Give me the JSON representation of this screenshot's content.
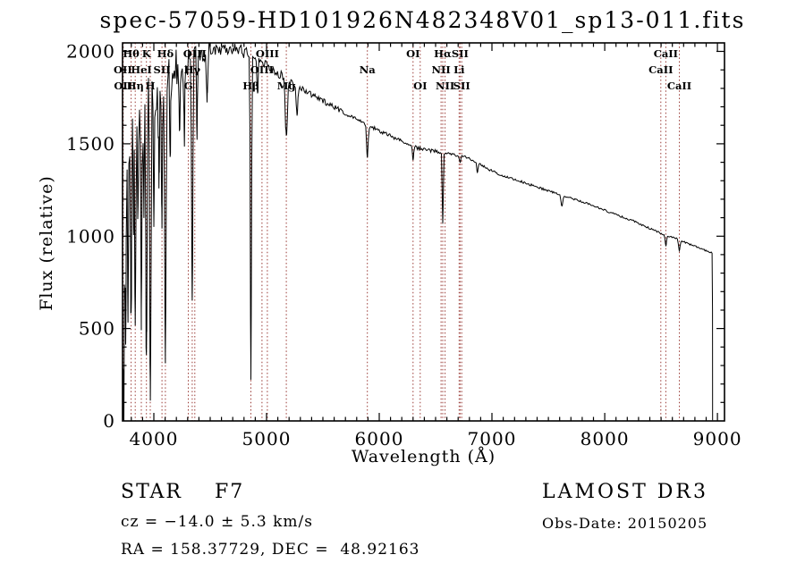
{
  "title": "spec-57059-HD101926N482348V01_sp13-011.fits",
  "annotations": {
    "class_line": "STAR    F7",
    "cz_line": "cz = −14.0 ± 5.3 km/s",
    "radec_line": "RA = 158.37729, DEC =  48.92163",
    "survey_line": "LAMOST DR3",
    "obsdate_line": "Obs-Date: 20150205"
  },
  "chart_data": {
    "type": "line",
    "title": "spec-57059-HD101926N482348V01_sp13-011.fits",
    "xlabel": "Wavelength (Å)",
    "ylabel": "Flux (relative)",
    "xlim": [
      3722,
      9063
    ],
    "ylim": [
      0,
      2046
    ],
    "x_ticks": [
      4000,
      5000,
      6000,
      7000,
      8000,
      9000
    ],
    "y_ticks": [
      0,
      500,
      1000,
      1500,
      2000
    ],
    "x_minor_step": 100,
    "y_minor_step": 100,
    "grid": false,
    "trace_color": "#000000",
    "marker_line_color": "#9a3b36",
    "spectrum_start": 3723,
    "spectrum_end": 8955,
    "spectral_lines": [
      {
        "name": "OII",
        "wavelength": 3725,
        "row": 2
      },
      {
        "name": "OII",
        "wavelength": 3728,
        "row": 3
      },
      {
        "name": "Hθ",
        "wavelength": 3798,
        "row": 1
      },
      {
        "name": "Hη",
        "wavelength": 3835,
        "row": 3
      },
      {
        "name": "HeI",
        "wavelength": 3889,
        "row": 2
      },
      {
        "name": "K",
        "wavelength": 3934,
        "row": 1
      },
      {
        "name": "H",
        "wavelength": 3968,
        "row": 3
      },
      {
        "name": "SII",
        "wavelength": 4072,
        "row": 2
      },
      {
        "name": "Hδ",
        "wavelength": 4102,
        "row": 1
      },
      {
        "name": "G",
        "wavelength": 4305,
        "row": 3
      },
      {
        "name": "Hγ",
        "wavelength": 4340,
        "row": 2
      },
      {
        "name": "OIII",
        "wavelength": 4363,
        "row": 1
      },
      {
        "name": "Hβ",
        "wavelength": 4861,
        "row": 3
      },
      {
        "name": "OIII",
        "wavelength": 4959,
        "row": 2
      },
      {
        "name": "OIII",
        "wavelength": 5007,
        "row": 1
      },
      {
        "name": "Mg",
        "wavelength": 5175,
        "row": 3
      },
      {
        "name": "Na",
        "wavelength": 5894,
        "row": 2
      },
      {
        "name": "OI",
        "wavelength": 6300,
        "row": 1
      },
      {
        "name": "OI",
        "wavelength": 6363,
        "row": 3
      },
      {
        "name": "NII",
        "wavelength": 6548,
        "row": 2
      },
      {
        "name": "Hα",
        "wavelength": 6563,
        "row": 1
      },
      {
        "name": "NII",
        "wavelength": 6584,
        "row": 3
      },
      {
        "name": "Li",
        "wavelength": 6708,
        "row": 2
      },
      {
        "name": "SII",
        "wavelength": 6717,
        "row": 1
      },
      {
        "name": "SII",
        "wavelength": 6731,
        "row": 3
      },
      {
        "name": "CaII",
        "wavelength": 8498,
        "row": 2
      },
      {
        "name": "CaII",
        "wavelength": 8542,
        "row": 1
      },
      {
        "name": "CaII",
        "wavelength": 8662,
        "row": 3
      }
    ],
    "continuum_points": [
      [
        3723,
        200
      ],
      [
        3740,
        1100
      ],
      [
        3770,
        1450
      ],
      [
        3800,
        1600
      ],
      [
        3850,
        1700
      ],
      [
        3900,
        1760
      ],
      [
        3950,
        1810
      ],
      [
        4000,
        1855
      ],
      [
        4060,
        1900
      ],
      [
        4120,
        1940
      ],
      [
        4200,
        1975
      ],
      [
        4300,
        1995
      ],
      [
        4400,
        2010
      ],
      [
        4500,
        2025
      ],
      [
        4650,
        2038
      ],
      [
        4750,
        2028
      ],
      [
        4850,
        2000
      ],
      [
        4950,
        1960
      ],
      [
        5050,
        1915
      ],
      [
        5150,
        1870
      ],
      [
        5250,
        1825
      ],
      [
        5350,
        1790
      ],
      [
        5450,
        1755
      ],
      [
        5550,
        1720
      ],
      [
        5650,
        1688
      ],
      [
        5750,
        1655
      ],
      [
        5850,
        1622
      ],
      [
        5950,
        1590
      ],
      [
        6050,
        1560
      ],
      [
        6150,
        1532
      ],
      [
        6250,
        1505
      ],
      [
        6350,
        1480
      ],
      [
        6450,
        1468
      ],
      [
        6550,
        1455
      ],
      [
        6650,
        1445
      ],
      [
        6750,
        1432
      ],
      [
        6850,
        1410
      ],
      [
        6950,
        1370
      ],
      [
        7050,
        1340
      ],
      [
        7150,
        1322
      ],
      [
        7250,
        1300
      ],
      [
        7350,
        1280
      ],
      [
        7450,
        1258
      ],
      [
        7550,
        1238
      ],
      [
        7650,
        1218
      ],
      [
        7750,
        1198
      ],
      [
        7850,
        1178
      ],
      [
        7950,
        1155
      ],
      [
        8050,
        1130
      ],
      [
        8150,
        1108
      ],
      [
        8250,
        1085
      ],
      [
        8350,
        1058
      ],
      [
        8450,
        1030
      ],
      [
        8550,
        1005
      ],
      [
        8650,
        985
      ],
      [
        8750,
        958
      ],
      [
        8850,
        935
      ],
      [
        8955,
        912
      ]
    ],
    "absorption_features": [
      [
        3734,
        650,
        5
      ],
      [
        3750,
        720,
        5
      ],
      [
        3771,
        860,
        5
      ],
      [
        3798,
        1020,
        6
      ],
      [
        3820,
        560,
        5
      ],
      [
        3835,
        1060,
        6
      ],
      [
        3860,
        620,
        5
      ],
      [
        3889,
        1120,
        7
      ],
      [
        3912,
        560,
        5
      ],
      [
        3934,
        1430,
        8
      ],
      [
        3969,
        1570,
        8
      ],
      [
        4000,
        620,
        6
      ],
      [
        4045,
        570,
        6
      ],
      [
        4072,
        720,
        6
      ],
      [
        4102,
        1630,
        8
      ],
      [
        4144,
        430,
        7
      ],
      [
        4227,
        390,
        6
      ],
      [
        4271,
        360,
        6
      ],
      [
        4340,
        1330,
        8
      ],
      [
        4383,
        390,
        7
      ],
      [
        4472,
        260,
        7
      ],
      [
        4861,
        1740,
        7
      ],
      [
        4920,
        200,
        7
      ],
      [
        5175,
        300,
        14
      ],
      [
        5270,
        160,
        10
      ],
      [
        5894,
        175,
        10
      ],
      [
        6300,
        70,
        7
      ],
      [
        6563,
        385,
        6
      ],
      [
        6717,
        40,
        7
      ],
      [
        6870,
        50,
        8
      ],
      [
        7620,
        60,
        12
      ],
      [
        8542,
        55,
        9
      ],
      [
        8662,
        55,
        9
      ]
    ],
    "noise_profile": [
      [
        3800,
        330
      ],
      [
        3950,
        290
      ],
      [
        4100,
        280
      ],
      [
        4300,
        220
      ],
      [
        4500,
        140
      ],
      [
        4800,
        75
      ],
      [
        5200,
        48
      ],
      [
        5800,
        30
      ],
      [
        6500,
        20
      ],
      [
        7500,
        14
      ],
      [
        9100,
        10
      ]
    ]
  }
}
